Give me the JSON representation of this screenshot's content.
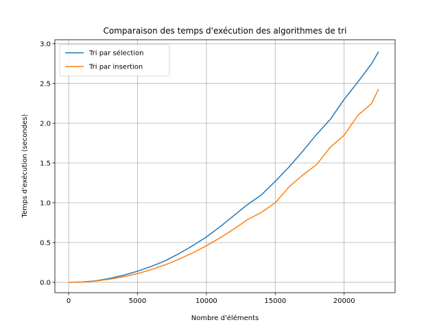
{
  "chart_data": {
    "type": "line",
    "title": "Comparaison des temps d'exécution des algorithmes de tri",
    "xlabel": "Nombre d'éléments",
    "ylabel": "Temps d'exécution (secondes)",
    "xlim": [
      -1000,
      23700
    ],
    "ylim": [
      -0.13,
      3.05
    ],
    "xticks": [
      0,
      5000,
      10000,
      15000,
      20000
    ],
    "xtick_labels": [
      "0",
      "5000",
      "10000",
      "15000",
      "20000"
    ],
    "yticks": [
      0.0,
      0.5,
      1.0,
      1.5,
      2.0,
      2.5,
      3.0
    ],
    "ytick_labels": [
      "0.0",
      "0.5",
      "1.0",
      "1.5",
      "2.0",
      "2.5",
      "3.0"
    ],
    "grid": true,
    "legend_position": "top-left",
    "x": [
      0,
      1000,
      2000,
      3000,
      4000,
      5000,
      6000,
      7000,
      8000,
      9000,
      10000,
      11000,
      12000,
      13000,
      14000,
      15000,
      16000,
      17000,
      18000,
      19000,
      20000,
      21000,
      22000,
      22500
    ],
    "series": [
      {
        "name": "Tri par sélection",
        "color": "#1f77b4",
        "values": [
          0.0,
          0.005,
          0.02,
          0.05,
          0.09,
          0.14,
          0.2,
          0.27,
          0.36,
          0.46,
          0.57,
          0.7,
          0.84,
          0.98,
          1.1,
          1.27,
          1.45,
          1.65,
          1.86,
          2.05,
          2.3,
          2.52,
          2.75,
          2.9
        ]
      },
      {
        "name": "Tri par insertion",
        "color": "#ff7f0e",
        "values": [
          0.0,
          0.004,
          0.016,
          0.04,
          0.07,
          0.11,
          0.16,
          0.22,
          0.29,
          0.37,
          0.46,
          0.56,
          0.67,
          0.79,
          0.88,
          1.0,
          1.2,
          1.35,
          1.48,
          1.7,
          1.85,
          2.1,
          2.25,
          2.43
        ]
      }
    ]
  }
}
